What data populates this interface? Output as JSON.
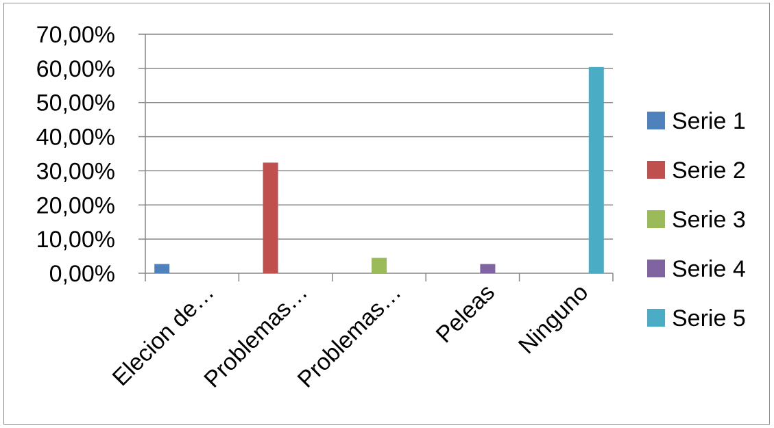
{
  "chart_data": {
    "type": "bar",
    "categories": [
      "Elecion de…",
      "Problemas…",
      "Problemas…",
      "Peleas",
      "Ninguno"
    ],
    "series": [
      {
        "name": "Serie 1",
        "color": "#4F81BD",
        "values": [
          0.027,
          0,
          0,
          0,
          0
        ]
      },
      {
        "name": "Serie 2",
        "color": "#C0504D",
        "values": [
          0,
          0.324,
          0,
          0,
          0
        ]
      },
      {
        "name": "Serie 3",
        "color": "#9BBB59",
        "values": [
          0,
          0,
          0.045,
          0,
          0
        ]
      },
      {
        "name": "Serie 4",
        "color": "#8064A2",
        "values": [
          0,
          0,
          0,
          0.027,
          0
        ]
      },
      {
        "name": "Serie 5",
        "color": "#4BACC6",
        "values": [
          0,
          0,
          0,
          0,
          0.604
        ]
      }
    ],
    "ylim": [
      0,
      0.7
    ],
    "yticks": [
      0,
      0.1,
      0.2,
      0.3,
      0.4,
      0.5,
      0.6,
      0.7
    ],
    "ytick_labels": [
      "0,00%",
      "10,00%",
      "20,00%",
      "30,00%",
      "40,00%",
      "50,00%",
      "60,00%",
      "70,00%"
    ],
    "grid": true,
    "legend_position": "right",
    "title": "",
    "xlabel": "",
    "ylabel": ""
  }
}
